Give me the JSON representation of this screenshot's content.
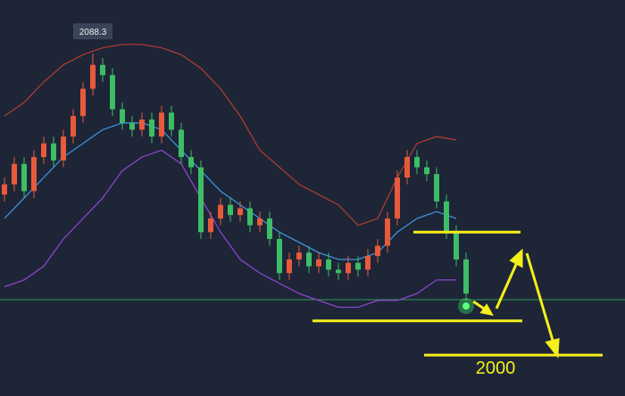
{
  "chart_data": {
    "type": "candlestick",
    "ylim": [
      1988,
      2104
    ],
    "up_color": "#e85a3c",
    "down_color": "#3dbd66",
    "open": [
      2047,
      2050,
      2056,
      2048,
      2058,
      2062,
      2057,
      2064,
      2070,
      2078,
      2085,
      2082,
      2072,
      2068,
      2066,
      2069,
      2064,
      2071,
      2066,
      2058,
      2055,
      2036,
      2040,
      2044,
      2041,
      2043,
      2038,
      2040,
      2034,
      2024,
      2028,
      2030,
      2026,
      2028,
      2025,
      2024,
      2027,
      2025,
      2029,
      2032,
      2040,
      2052,
      2058,
      2055,
      2053,
      2045,
      2036,
      2028
    ],
    "high": [
      2052,
      2058,
      2058,
      2060,
      2064,
      2064,
      2066,
      2072,
      2080,
      2088.3,
      2087,
      2084,
      2074,
      2070,
      2071,
      2071,
      2073,
      2073,
      2068,
      2060,
      2057,
      2042,
      2046,
      2046,
      2045,
      2045,
      2042,
      2042,
      2036,
      2030,
      2032,
      2032,
      2030,
      2030,
      2027,
      2029,
      2029,
      2031,
      2034,
      2042,
      2054,
      2060,
      2060,
      2057,
      2055,
      2047,
      2038,
      2030
    ],
    "low": [
      2045,
      2048,
      2046,
      2046,
      2056,
      2055,
      2055,
      2062,
      2068,
      2076,
      2080,
      2070,
      2066,
      2064,
      2064,
      2062,
      2062,
      2064,
      2056,
      2053,
      2034,
      2034,
      2038,
      2039,
      2039,
      2036,
      2036,
      2032,
      2022,
      2022,
      2026,
      2024,
      2024,
      2023,
      2022,
      2022,
      2023,
      2023,
      2027,
      2030,
      2038,
      2050,
      2053,
      2051,
      2043,
      2034,
      2026,
      2016
    ],
    "close": [
      2050,
      2056,
      2048,
      2058,
      2062,
      2057,
      2064,
      2070,
      2078,
      2085,
      2082,
      2072,
      2068,
      2066,
      2069,
      2064,
      2071,
      2066,
      2058,
      2055,
      2036,
      2040,
      2044,
      2041,
      2043,
      2038,
      2040,
      2034,
      2024,
      2028,
      2030,
      2026,
      2028,
      2025,
      2024,
      2027,
      2025,
      2029,
      2032,
      2040,
      2052,
      2058,
      2055,
      2053,
      2045,
      2036,
      2028,
      2018
    ],
    "lines": {
      "x": [
        0,
        2,
        4,
        6,
        8,
        10,
        12,
        14,
        16,
        18,
        20,
        22,
        24,
        26,
        28,
        30,
        32,
        34,
        36,
        38,
        40,
        42,
        44,
        46
      ],
      "series": [
        {
          "color": "#a83a32",
          "values": [
            2070,
            2074,
            2080,
            2085,
            2088,
            2090,
            2091,
            2091,
            2090,
            2088,
            2084,
            2078,
            2070,
            2060,
            2055,
            2050,
            2047,
            2044,
            2038,
            2040,
            2052,
            2062,
            2064,
            2063
          ]
        },
        {
          "color": "#3e8fd8",
          "values": [
            2040,
            2046,
            2052,
            2058,
            2062,
            2066,
            2068,
            2068,
            2066,
            2060,
            2054,
            2048,
            2044,
            2040,
            2036,
            2033,
            2030,
            2028,
            2028,
            2030,
            2036,
            2040,
            2042,
            2040
          ]
        },
        {
          "color": "#8a45c8",
          "values": [
            2020,
            2022,
            2026,
            2034,
            2040,
            2046,
            2054,
            2058,
            2060,
            2056,
            2046,
            2036,
            2028,
            2024,
            2021,
            2018,
            2016,
            2014,
            2014,
            2016,
            2016,
            2018,
            2022,
            2022
          ]
        }
      ]
    },
    "current_line": {
      "value": 2016.2,
      "color": "#2e9a55"
    },
    "levels": [
      {
        "value": 2036
      },
      {
        "value": 2010
      },
      {
        "value": 2000,
        "label": "2000"
      }
    ],
    "level_color": "#f5ef1a"
  }
}
